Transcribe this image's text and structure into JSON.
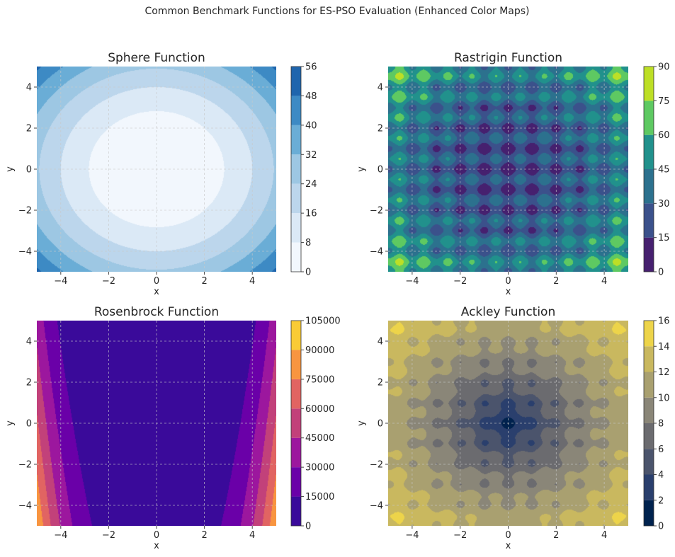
{
  "suptitle": "Common Benchmark Functions for ES-PSO Evaluation (Enhanced Color Maps)",
  "chart_data": [
    {
      "type": "heatmap",
      "subtype": "filled-contour",
      "function": "sphere",
      "title": "Sphere Function",
      "xlabel": "x",
      "ylabel": "y",
      "xlim": [
        -5,
        5
      ],
      "ylim": [
        -5,
        5
      ],
      "xticks": [
        -4,
        -2,
        0,
        2,
        4
      ],
      "yticks": [
        -4,
        -2,
        0,
        2,
        4
      ],
      "xtick_labels": [
        "−4",
        "−2",
        "0",
        "2",
        "4"
      ],
      "ytick_labels": [
        "−4",
        "−2",
        "0",
        "2",
        "4"
      ],
      "grid": true,
      "colorbar": {
        "levels": [
          0,
          8,
          16,
          24,
          32,
          40,
          48,
          56
        ],
        "tick_labels": [
          "0",
          "8",
          "16",
          "24",
          "32",
          "40",
          "48",
          "56"
        ],
        "colors": [
          "#f2f7fd",
          "#dbe9f6",
          "#bcd6ec",
          "#9dc7e3",
          "#6aadd6",
          "#3d8ac4",
          "#1f65ad"
        ]
      }
    },
    {
      "type": "heatmap",
      "subtype": "filled-contour",
      "function": "rastrigin",
      "title": "Rastrigin Function",
      "xlabel": "x",
      "ylabel": "y",
      "xlim": [
        -5,
        5
      ],
      "ylim": [
        -5,
        5
      ],
      "xticks": [
        -4,
        -2,
        0,
        2,
        4
      ],
      "yticks": [
        -4,
        -2,
        0,
        2,
        4
      ],
      "xtick_labels": [
        "−4",
        "−2",
        "0",
        "2",
        "4"
      ],
      "ytick_labels": [
        "−4",
        "−2",
        "0",
        "2",
        "4"
      ],
      "grid": true,
      "colorbar": {
        "levels": [
          0,
          15,
          30,
          45,
          60,
          75,
          90
        ],
        "tick_labels": [
          "0",
          "15",
          "30",
          "45",
          "60",
          "75",
          "90"
        ],
        "colors": [
          "#46206f",
          "#3b518b",
          "#2c718e",
          "#21918c",
          "#5ec962",
          "#bddf26"
        ]
      }
    },
    {
      "type": "heatmap",
      "subtype": "filled-contour",
      "function": "rosenbrock",
      "title": "Rosenbrock Function",
      "xlabel": "x",
      "ylabel": "y",
      "xlim": [
        -5,
        5
      ],
      "ylim": [
        -5,
        5
      ],
      "xticks": [
        -4,
        -2,
        0,
        2,
        4
      ],
      "yticks": [
        -4,
        -2,
        0,
        2,
        4
      ],
      "xtick_labels": [
        "−4",
        "−2",
        "0",
        "2",
        "4"
      ],
      "ytick_labels": [
        "−4",
        "−2",
        "0",
        "2",
        "4"
      ],
      "grid": true,
      "colorbar": {
        "levels": [
          0,
          15000,
          30000,
          45000,
          60000,
          75000,
          90000,
          105000
        ],
        "tick_labels": [
          "0",
          "15000",
          "30000",
          "45000",
          "60000",
          "75000",
          "90000",
          "105000"
        ],
        "colors": [
          "#3a0a9a",
          "#6a00a8",
          "#9c179e",
          "#c2417a",
          "#e16462",
          "#f89540",
          "#f9cb35"
        ]
      }
    },
    {
      "type": "heatmap",
      "subtype": "filled-contour",
      "function": "ackley",
      "title": "Ackley Function",
      "xlabel": "x",
      "ylabel": "y",
      "xlim": [
        -5,
        5
      ],
      "ylim": [
        -5,
        5
      ],
      "xticks": [
        -4,
        -2,
        0,
        2,
        4
      ],
      "yticks": [
        -4,
        -2,
        0,
        2,
        4
      ],
      "xtick_labels": [
        "−4",
        "−2",
        "0",
        "2",
        "4"
      ],
      "ytick_labels": [
        "−4",
        "−2",
        "0",
        "2",
        "4"
      ],
      "grid": true,
      "colorbar": {
        "levels": [
          0,
          2,
          4,
          6,
          8,
          10,
          12,
          14,
          16
        ],
        "tick_labels": [
          "0",
          "2",
          "4",
          "6",
          "8",
          "10",
          "12",
          "14",
          "16"
        ],
        "colors": [
          "#00224e",
          "#2a3f6d",
          "#4b546c",
          "#6b6b6f",
          "#8a8678",
          "#a9a070",
          "#c9b85f",
          "#edd44a"
        ]
      }
    }
  ]
}
